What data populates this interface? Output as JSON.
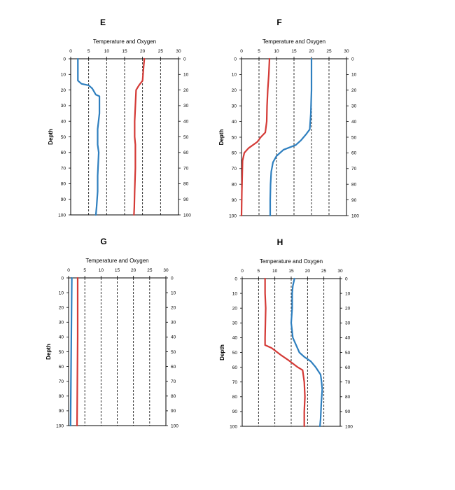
{
  "chart_data": [
    {
      "type": "line",
      "panel": "E",
      "title": "Temperature and Oxygen",
      "ylabel": "Depth",
      "xlim": [
        0,
        30
      ],
      "ylim": [
        0,
        100
      ],
      "y_inverted": true,
      "x_ticks": [
        0,
        5,
        10,
        15,
        20,
        25,
        30
      ],
      "y_ticks": [
        0,
        10,
        20,
        30,
        40,
        50,
        60,
        70,
        80,
        90,
        100
      ],
      "grid": "vertical dashed at 5,10,15,20,25",
      "series": [
        {
          "color": "#2e7fbf",
          "points": [
            [
              2,
              0
            ],
            [
              2,
              14
            ],
            [
              3,
              16
            ],
            [
              5,
              17
            ],
            [
              6,
              19
            ],
            [
              7,
              23
            ],
            [
              8,
              24
            ],
            [
              8,
              35
            ],
            [
              7.5,
              45
            ],
            [
              7.5,
              55
            ],
            [
              7.8,
              60
            ],
            [
              7.5,
              75
            ],
            [
              7.5,
              85
            ],
            [
              7.2,
              95
            ],
            [
              7,
              100
            ]
          ]
        },
        {
          "color": "#d43a36",
          "points": [
            [
              20.5,
              0
            ],
            [
              20.3,
              5
            ],
            [
              20,
              14
            ],
            [
              19,
              17
            ],
            [
              18.2,
              20
            ],
            [
              18,
              30
            ],
            [
              17.8,
              40
            ],
            [
              17.8,
              50
            ],
            [
              18,
              55
            ],
            [
              18,
              70
            ],
            [
              17.8,
              85
            ],
            [
              17.7,
              95
            ],
            [
              17.6,
              100
            ]
          ]
        }
      ]
    },
    {
      "type": "line",
      "panel": "F",
      "title": "Temperature and Oxygen",
      "ylabel": "Depth",
      "xlim": [
        0,
        30
      ],
      "ylim": [
        0,
        100
      ],
      "y_inverted": true,
      "x_ticks": [
        0,
        5,
        10,
        15,
        20,
        25,
        30
      ],
      "y_ticks": [
        0,
        10,
        20,
        30,
        40,
        50,
        60,
        70,
        80,
        90,
        100
      ],
      "grid": "vertical dashed at 5,10,15,20,25",
      "series": [
        {
          "color": "#d43a36",
          "points": [
            [
              8,
              0
            ],
            [
              7.8,
              10
            ],
            [
              7.5,
              20
            ],
            [
              7.3,
              30
            ],
            [
              7.2,
              40
            ],
            [
              6.8,
              47
            ],
            [
              5.5,
              50
            ],
            [
              4.5,
              53
            ],
            [
              2,
              57
            ],
            [
              0.8,
              60
            ],
            [
              0.3,
              65
            ],
            [
              0.2,
              75
            ],
            [
              0.1,
              85
            ],
            [
              0,
              100
            ]
          ]
        },
        {
          "color": "#2e7fbf",
          "points": [
            [
              20,
              0
            ],
            [
              20,
              20
            ],
            [
              19.8,
              35
            ],
            [
              19.5,
              45
            ],
            [
              18.5,
              48
            ],
            [
              17,
              52
            ],
            [
              15.5,
              55
            ],
            [
              12,
              58
            ],
            [
              10,
              62
            ],
            [
              9,
              66
            ],
            [
              8.5,
              72
            ],
            [
              8.3,
              80
            ],
            [
              8.2,
              90
            ],
            [
              8.2,
              100
            ]
          ]
        }
      ]
    },
    {
      "type": "line",
      "panel": "G",
      "title": "Temperature and Oxygen",
      "ylabel": "Depth",
      "xlim": [
        0,
        30
      ],
      "ylim": [
        0,
        100
      ],
      "y_inverted": true,
      "x_ticks": [
        0,
        5,
        10,
        15,
        20,
        25,
        30
      ],
      "y_ticks": [
        0,
        10,
        20,
        30,
        40,
        50,
        60,
        70,
        80,
        90,
        100
      ],
      "grid": "vertical dashed at 5,10,15,20,25",
      "series": [
        {
          "color": "#2e7fbf",
          "points": [
            [
              1,
              0
            ],
            [
              0.9,
              25
            ],
            [
              0.8,
              50
            ],
            [
              0.7,
              75
            ],
            [
              0.6,
              100
            ]
          ]
        },
        {
          "color": "#d43a36",
          "points": [
            [
              2.8,
              0
            ],
            [
              2.8,
              40
            ],
            [
              2.7,
              70
            ],
            [
              2.6,
              100
            ]
          ]
        }
      ]
    },
    {
      "type": "line",
      "panel": "H",
      "title": "Temperature and Oxygen",
      "ylabel": "Depth",
      "xlim": [
        0,
        30
      ],
      "ylim": [
        0,
        100
      ],
      "y_inverted": true,
      "x_ticks": [
        0,
        5,
        10,
        15,
        20,
        25,
        30
      ],
      "y_ticks": [
        0,
        10,
        20,
        30,
        40,
        50,
        60,
        70,
        80,
        90,
        100
      ],
      "grid": "vertical dashed at 5,10,15,20,25",
      "series": [
        {
          "color": "#d43a36",
          "points": [
            [
              7,
              0
            ],
            [
              7,
              10
            ],
            [
              7.2,
              20
            ],
            [
              7.1,
              30
            ],
            [
              7,
              40
            ],
            [
              7,
              45
            ],
            [
              9,
              47
            ],
            [
              12,
              52
            ],
            [
              14,
              55
            ],
            [
              17,
              60
            ],
            [
              18.5,
              62
            ],
            [
              19,
              70
            ],
            [
              19.2,
              80
            ],
            [
              19,
              90
            ],
            [
              19,
              100
            ]
          ]
        },
        {
          "color": "#2e7fbf",
          "points": [
            [
              16,
              0
            ],
            [
              15.5,
              5
            ],
            [
              15.3,
              10
            ],
            [
              15.3,
              20
            ],
            [
              15,
              30
            ],
            [
              15.5,
              40
            ],
            [
              16.5,
              45
            ],
            [
              17.5,
              50
            ],
            [
              19,
              53
            ],
            [
              21,
              56
            ],
            [
              22.5,
              60
            ],
            [
              24,
              65
            ],
            [
              24.3,
              70
            ],
            [
              24.5,
              75
            ],
            [
              24.2,
              85
            ],
            [
              24,
              95
            ],
            [
              23.8,
              100
            ]
          ]
        }
      ]
    }
  ]
}
